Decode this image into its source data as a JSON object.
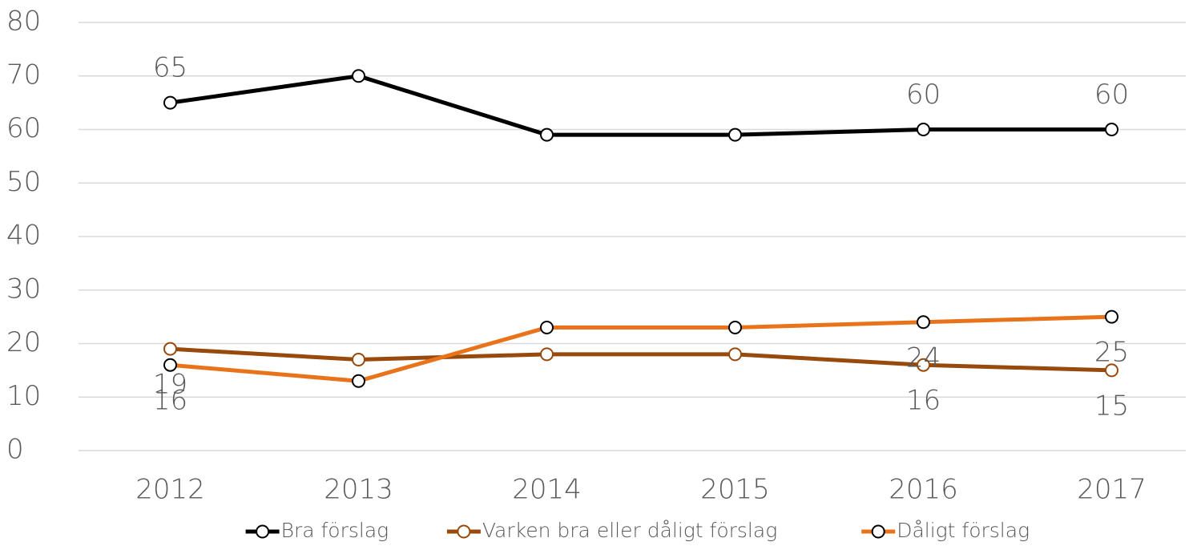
{
  "chart_data": {
    "type": "line",
    "categories": [
      "2012",
      "2013",
      "2014",
      "2015",
      "2016",
      "2017"
    ],
    "series": [
      {
        "name": "Bra förslag",
        "color": "#000000",
        "marker_color": "#000000",
        "values": [
          65,
          70,
          59,
          59,
          60,
          60
        ],
        "value_labels": [
          "65",
          null,
          null,
          null,
          "60",
          "60"
        ]
      },
      {
        "name": "Varken bra eller dåligt förslag",
        "color": "#974a0c",
        "marker_color": "#974a0c",
        "values": [
          19,
          17,
          18,
          18,
          16,
          15
        ],
        "value_labels": [
          "19",
          null,
          null,
          null,
          "16",
          "15"
        ]
      },
      {
        "name": "Dåligt förslag",
        "color": "#e8731a",
        "marker_color": "#000000",
        "values": [
          16,
          13,
          23,
          23,
          24,
          25
        ],
        "value_labels": [
          "16",
          null,
          null,
          null,
          "24",
          "25"
        ]
      }
    ],
    "ylim": [
      0,
      80
    ],
    "yticks": [
      0,
      10,
      20,
      30,
      40,
      50,
      60,
      70,
      80
    ],
    "grid": true,
    "legend": "bottom"
  }
}
